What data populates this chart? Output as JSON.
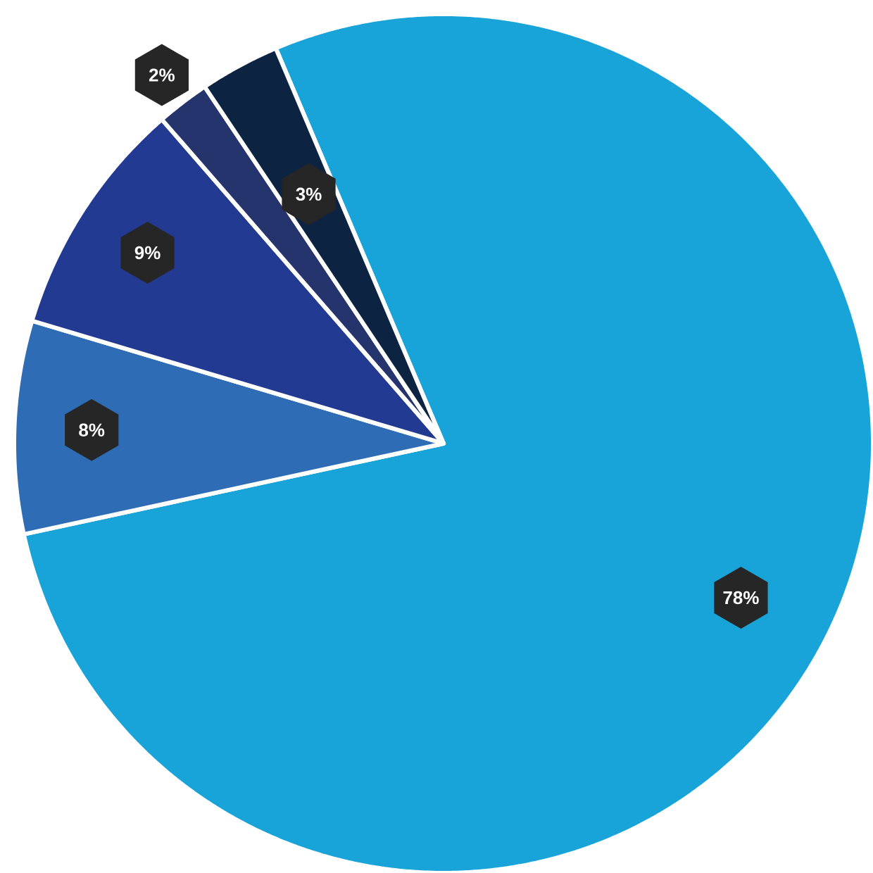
{
  "chart_data": {
    "type": "pie",
    "categories": [
      null,
      null,
      null,
      null,
      null
    ],
    "values": [
      78,
      8,
      9,
      2,
      3
    ],
    "value_labels": [
      "78%",
      "8%",
      "9%",
      "2%",
      "3%"
    ],
    "colors": [
      "#18a4d9",
      "#2e6db5",
      "#233a93",
      "#26346e",
      "#0d2342"
    ]
  }
}
